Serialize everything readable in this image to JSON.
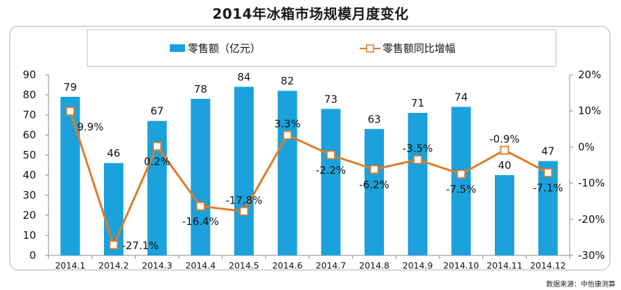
{
  "source_text": "数据来源：中怡康测算",
  "chart_data": {
    "type": "bar",
    "title": "2014年冰箱市场规模月度变化",
    "categories": [
      "2014.1",
      "2014.2",
      "2014.3",
      "2014.4",
      "2014.5",
      "2014.6",
      "2014.7",
      "2014.8",
      "2014.9",
      "2014.10",
      "2014.11",
      "2014.12"
    ],
    "series": [
      {
        "name": "零售额（亿元）",
        "kind": "bar",
        "axis": "left",
        "values": [
          79,
          46,
          67,
          78,
          84,
          82,
          73,
          63,
          71,
          74,
          40,
          47
        ],
        "labels": [
          "79",
          "46",
          "67",
          "78",
          "84",
          "82",
          "73",
          "63",
          "71",
          "74",
          "40",
          "47"
        ]
      },
      {
        "name": "零售额同比增幅",
        "kind": "line",
        "axis": "right",
        "values": [
          9.9,
          -27.1,
          0.2,
          -16.4,
          -17.8,
          3.3,
          -2.2,
          -6.2,
          -3.5,
          -7.5,
          -0.9,
          -7.1
        ],
        "labels": [
          "9.9%",
          "-27.1%",
          "0.2%",
          "-16.4%",
          "-17.8%",
          "3.3%",
          "-2.2%",
          "-6.2%",
          "-3.5%",
          "-7.5%",
          "-0.9%",
          "-7.1%"
        ]
      }
    ],
    "left_axis": {
      "ylim": [
        0,
        90
      ],
      "ticks": [
        0,
        10,
        20,
        30,
        40,
        50,
        60,
        70,
        80,
        90
      ],
      "tick_labels": [
        "0",
        "10",
        "20",
        "30",
        "40",
        "50",
        "60",
        "70",
        "80",
        "90"
      ]
    },
    "right_axis": {
      "ylim": [
        -30,
        20
      ],
      "ticks": [
        -30,
        -20,
        -10,
        0,
        10,
        20
      ],
      "tick_labels": [
        "-30%",
        "-20%",
        "-10%",
        "0%",
        "10%",
        "20%"
      ]
    },
    "legend_position": "top",
    "grid": false,
    "colors": {
      "bar": "#1ba1dc",
      "line": "#e07b24",
      "marker_fill": "#ffffff"
    }
  }
}
